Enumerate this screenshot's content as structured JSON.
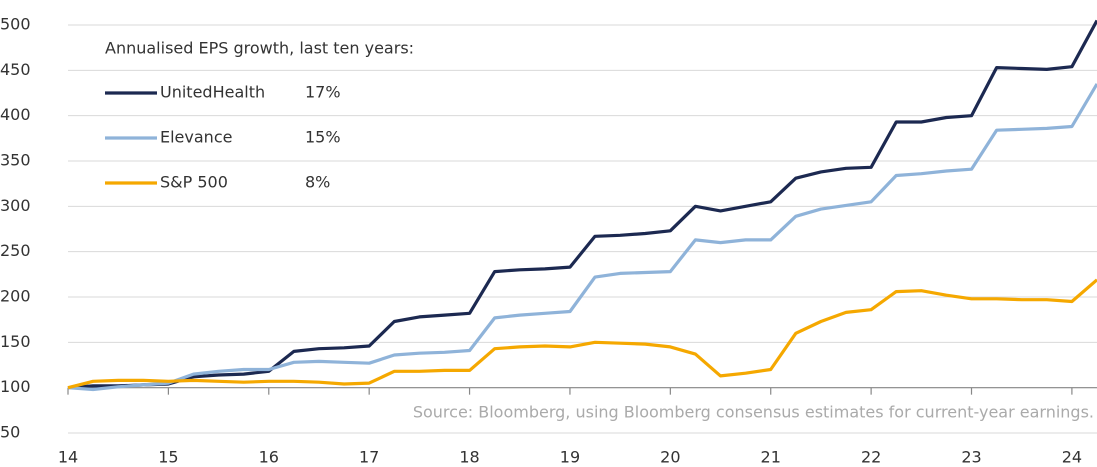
{
  "chart_data": {
    "type": "line",
    "legend_title": "Annualised EPS growth, last ten years:",
    "source": "Source: Bloomberg, using Bloomberg consensus estimates for current-year earnings.",
    "x": [
      14,
      14.25,
      14.5,
      14.75,
      15,
      15.25,
      15.5,
      15.75,
      16,
      16.25,
      16.5,
      16.75,
      17,
      17.25,
      17.5,
      17.75,
      18,
      18.25,
      18.5,
      18.75,
      19,
      19.25,
      19.5,
      19.75,
      20,
      20.25,
      20.5,
      20.75,
      21,
      21.25,
      21.5,
      21.75,
      22,
      22.25,
      22.5,
      22.75,
      23,
      23.25,
      23.5,
      23.75,
      24,
      24.25
    ],
    "series": [
      {
        "name": "UnitedHealth",
        "growth": "17%",
        "color": "#1c2951",
        "values": [
          100,
          102,
          102,
          103,
          104,
          112,
          114,
          115,
          118,
          140,
          143,
          144,
          146,
          173,
          178,
          180,
          182,
          228,
          230,
          231,
          233,
          267,
          268,
          270,
          273,
          300,
          295,
          300,
          305,
          331,
          338,
          342,
          343,
          393,
          393,
          398,
          400,
          453,
          452,
          451,
          454,
          505
        ]
      },
      {
        "name": "Elevance",
        "growth": "15%",
        "color": "#8fb3d9",
        "values": [
          100,
          98,
          101,
          103,
          105,
          115,
          118,
          120,
          120,
          128,
          129,
          128,
          127,
          136,
          138,
          139,
          141,
          177,
          180,
          182,
          184,
          222,
          226,
          227,
          228,
          263,
          260,
          263,
          263,
          289,
          297,
          301,
          305,
          334,
          336,
          339,
          341,
          384,
          385,
          386,
          388,
          435
        ]
      },
      {
        "name": "S&P 500",
        "growth": "8%",
        "color": "#f5a800",
        "values": [
          100,
          107,
          108,
          108,
          107,
          108,
          107,
          106,
          107,
          107,
          106,
          104,
          105,
          118,
          118,
          119,
          119,
          143,
          145,
          146,
          145,
          150,
          149,
          148,
          145,
          137,
          113,
          116,
          120,
          160,
          173,
          183,
          186,
          206,
          207,
          202,
          198,
          198,
          197,
          197,
          195,
          219
        ]
      }
    ],
    "xlim": [
      14,
      24.25
    ],
    "xticks": [
      14,
      15,
      16,
      17,
      18,
      19,
      20,
      21,
      22,
      23,
      24
    ],
    "ylim": [
      50,
      500
    ],
    "yticks": [
      50,
      100,
      150,
      200,
      250,
      300,
      350,
      400,
      450,
      500
    ],
    "x_axis_at": 100,
    "grid": true
  }
}
